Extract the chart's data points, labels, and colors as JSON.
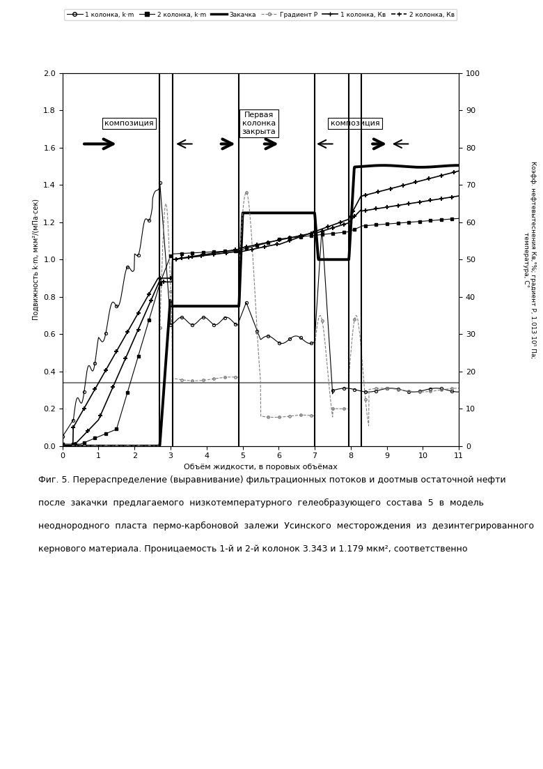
{
  "title": "",
  "xlabel": "Объём жидкости, в поровых объёмах",
  "ylabel_left": "Подвижность k·m, мкм²/(мПа·сек)",
  "ylabel_right": "Коэфф. нефтевытеснения Кв; градиент Р, 1.013e5 Па; температура, С",
  "xlim": [
    0,
    11
  ],
  "ylim_left": [
    0,
    2
  ],
  "ylim_right": [
    0,
    100
  ],
  "yticks_left": [
    0,
    0.2,
    0.4,
    0.6,
    0.8,
    1.0,
    1.2,
    1.4,
    1.6,
    1.8,
    2.0
  ],
  "yticks_right": [
    0,
    10,
    20,
    30,
    40,
    50,
    60,
    70,
    80,
    90,
    100
  ],
  "xticks": [
    0,
    1,
    2,
    3,
    4,
    5,
    6,
    7,
    8,
    9,
    10,
    11
  ],
  "vertical_lines": [
    2.7,
    3.05,
    4.9,
    7.0,
    7.95,
    8.3
  ],
  "horizontal_line_y": 0.34,
  "background_color": "#ffffff",
  "plot_bg": "#ffffff",
  "figsize": [
    7.8,
    11.03
  ],
  "dpi": 100,
  "caption_line1": "Фиг. 5. Перераспределение (выравнивание) фильтрационных потоков и доотмыв остаточной нефти",
  "caption_line2": "после  закачки  предлагаемого  низкотемпературного  гелеобразующего  состава  5  в  модель",
  "caption_line3": "неоднородного  пласта  пермо-карбоновой  залежи  Усинского  месторождения  из  дезинтегрированного",
  "caption_line4": "кернового материала. Проницаемость 1-й и 2-й колонок 3.343 и 1.179 мкм², соответственно"
}
